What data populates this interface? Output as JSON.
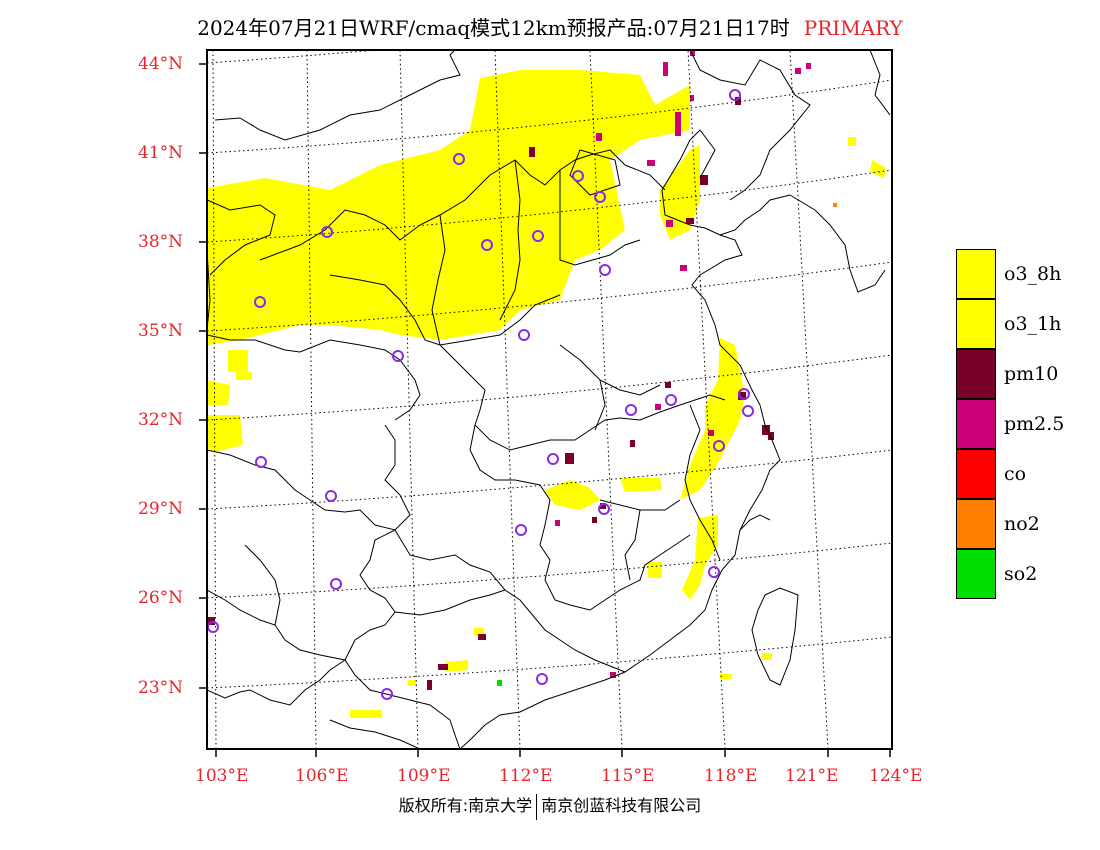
{
  "title": {
    "main": "2024年07月21日WRF/cmaq模式12km预报产品:07月21日17时",
    "tag": "PRIMARY"
  },
  "axes": {
    "latitudes": [
      "44°N",
      "41°N",
      "38°N",
      "35°N",
      "32°N",
      "29°N",
      "26°N",
      "23°N"
    ],
    "longitudes": [
      "103°E",
      "106°E",
      "109°E",
      "112°E",
      "115°E",
      "118°E",
      "121°E",
      "124°E"
    ]
  },
  "legend": [
    {
      "label": "o3_8h",
      "color": "#ffff00"
    },
    {
      "label": "o3_1h",
      "color": "#ffff00"
    },
    {
      "label": "pm10",
      "color": "#7a0027"
    },
    {
      "label": "pm2.5",
      "color": "#cc0077"
    },
    {
      "label": "co",
      "color": "#ff0000"
    },
    {
      "label": "no2",
      "color": "#ff8000"
    },
    {
      "label": "so2",
      "color": "#00dd00"
    }
  ],
  "footer": {
    "left": "版权所有:南京大学",
    "right": "南京创蓝科技有限公司"
  },
  "colors": {
    "accent": "#e8242b",
    "station_marker": "#8a2be2",
    "o3": "#ffff00",
    "pm10": "#7a0027",
    "pm25": "#cc0077",
    "so2": "#00dd00",
    "no2": "#ff8000"
  }
}
